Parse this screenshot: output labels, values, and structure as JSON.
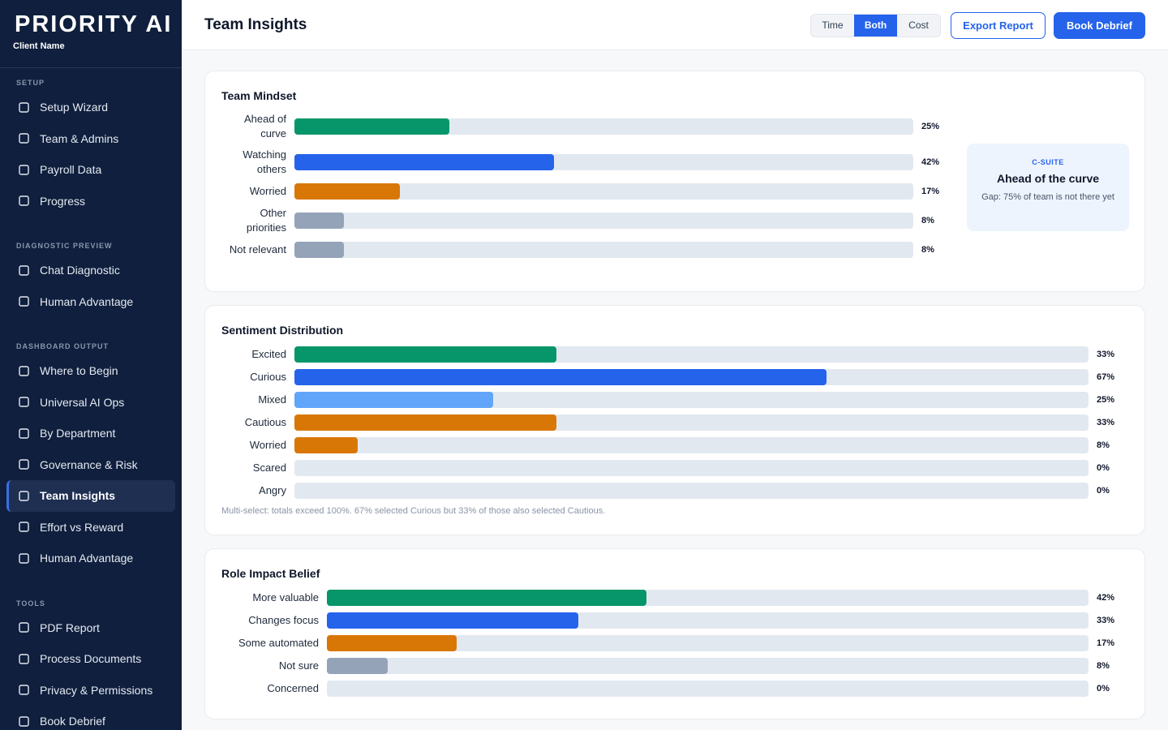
{
  "sidebar": {
    "brand": "PRIORITY AI",
    "client": "Client Name",
    "sections": [
      {
        "title": "SETUP",
        "items": [
          "Setup Wizard",
          "Team & Admins",
          "Payroll Data",
          "Progress"
        ]
      },
      {
        "title": "DIAGNOSTIC PREVIEW",
        "items": [
          "Chat Diagnostic",
          "Human Advantage"
        ]
      },
      {
        "title": "DASHBOARD OUTPUT",
        "items": [
          "Where to Begin",
          "Universal AI Ops",
          "By Department",
          "Governance & Risk",
          "Team Insights",
          "Effort vs Reward",
          "Human Advantage"
        ]
      },
      {
        "title": "TOOLS",
        "items": [
          "PDF Report",
          "Process Documents",
          "Privacy & Permissions",
          "Book Debrief"
        ]
      }
    ]
  },
  "header": {
    "title": "Team Insights",
    "toggle": [
      "Time",
      "Both",
      "Cost"
    ],
    "buttons": [
      "Export Report",
      "Book Debrief"
    ]
  },
  "callout": {
    "kicker": "C-SUITE",
    "title": "Ahead of the curve",
    "text": "Gap: 75% of team is not there yet"
  },
  "chart_data": [
    {
      "type": "bar",
      "title": "Team Mindset",
      "categories": [
        "Ahead of curve",
        "Watching others",
        "Worried",
        "Other priorities",
        "Not relevant"
      ],
      "values": [
        25,
        42,
        17,
        8,
        8
      ],
      "value_labels": [
        "25%",
        "42%",
        "17%",
        "8%",
        "8%"
      ],
      "colors": [
        "#079669",
        "#2563eb",
        "#d97706",
        "#94a3b8",
        "#94a3b8"
      ],
      "xlim": [
        0,
        100
      ]
    },
    {
      "type": "bar",
      "title": "Sentiment Distribution",
      "categories": [
        "Excited",
        "Curious",
        "Mixed",
        "Cautious",
        "Worried",
        "Scared",
        "Angry"
      ],
      "values": [
        33,
        67,
        25,
        33,
        8,
        0,
        0
      ],
      "value_labels": [
        "33%",
        "67%",
        "25%",
        "33%",
        "8%",
        "0%",
        "0%"
      ],
      "colors": [
        "#079669",
        "#2563eb",
        "#60a5fa",
        "#d97706",
        "#d97706",
        "#94a3b8",
        "#94a3b8"
      ],
      "xlim": [
        0,
        100
      ],
      "note": "Multi-select: totals exceed 100%. 67% selected Curious but 33% of those also selected Cautious."
    },
    {
      "type": "bar",
      "title": "Role Impact Belief",
      "categories": [
        "More valuable",
        "Changes focus",
        "Some automated",
        "Not sure",
        "Concerned"
      ],
      "values": [
        42,
        33,
        17,
        8,
        0
      ],
      "value_labels": [
        "42%",
        "33%",
        "17%",
        "8%",
        "0%"
      ],
      "colors": [
        "#079669",
        "#2563eb",
        "#d97706",
        "#94a3b8",
        "#94a3b8"
      ],
      "xlim": [
        0,
        100
      ]
    }
  ]
}
